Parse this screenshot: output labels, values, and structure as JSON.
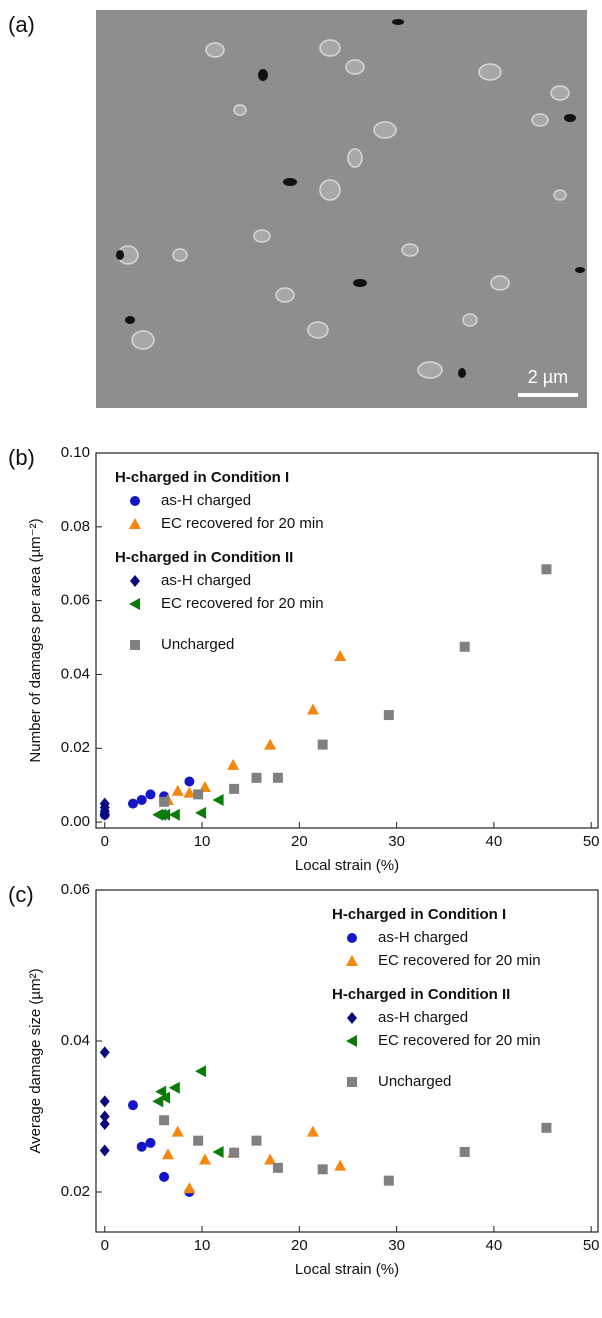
{
  "panel_a": {
    "label": "(a)",
    "scale_bar": "2 µm"
  },
  "chart_data": [
    {
      "type": "scatter",
      "label": "(b)",
      "x_label": "Local strain (%)",
      "y_label": "Number of damages per area (µm⁻²)",
      "xlim": [
        -0.9,
        50.7
      ],
      "ylim": [
        -0.0016,
        0.1
      ],
      "xticks": [
        0,
        10,
        20,
        30,
        40,
        50
      ],
      "yticks": [
        {
          "value": 0,
          "label": "0.00"
        },
        {
          "value": 0.02,
          "label": "0.02"
        },
        {
          "value": 0.04,
          "label": "0.04"
        },
        {
          "value": 0.06,
          "label": "0.06"
        },
        {
          "value": 0.08,
          "label": "0.08"
        },
        {
          "value": 0.1,
          "label": "0.10"
        }
      ],
      "legend": "upper left",
      "legend_headings": [
        "H-charged in Condition I",
        "H-charged in Condition II"
      ],
      "series": [
        {
          "name": "as-H charged",
          "color": "#1414c8",
          "marker": "circle",
          "x": [
            0,
            2.9,
            3.8,
            4.7,
            6.1,
            8.7
          ],
          "values": [
            0.002,
            0.005,
            0.006,
            0.0075,
            0.007,
            0.011
          ]
        },
        {
          "name": "EC recovered for 20 min",
          "color": "#f5870f",
          "marker": "triangle-up",
          "x": [
            6.5,
            7.5,
            8.7,
            10.3,
            13.2,
            17,
            21.4,
            24.2
          ],
          "values": [
            0.006,
            0.0085,
            0.008,
            0.0095,
            0.0155,
            0.021,
            0.0305,
            0.045
          ]
        },
        {
          "name": "as-H charged",
          "color": "#0a0a80",
          "marker": "diamond",
          "x": [
            0,
            0,
            0,
            0
          ],
          "values": [
            0.005,
            0.004,
            0.003,
            0.002
          ]
        },
        {
          "name": "EC recovered for 20 min",
          "color": "#0a7a0a",
          "marker": "triangle-left",
          "x": [
            5.5,
            5.8,
            6.2,
            7.2,
            9.9,
            11.7
          ],
          "values": [
            0.002,
            0.002,
            0.002,
            0.002,
            0.0025,
            0.006
          ]
        },
        {
          "name": "Uncharged",
          "color": "#808080",
          "marker": "square",
          "x": [
            6.1,
            9.6,
            13.3,
            15.6,
            17.8,
            22.4,
            29.2,
            37,
            45.4
          ],
          "values": [
            0.0055,
            0.0075,
            0.009,
            0.012,
            0.012,
            0.021,
            0.029,
            0.0475,
            0.0685
          ]
        }
      ]
    },
    {
      "type": "scatter",
      "label": "(c)",
      "x_label": "Local strain (%)",
      "y_label": "Average damage size (µm²)",
      "xlim": [
        -0.9,
        50.7
      ],
      "ylim": [
        0.0147,
        0.06
      ],
      "xticks": [
        0,
        10,
        20,
        30,
        40,
        50
      ],
      "yticks": [
        {
          "value": 0.02,
          "label": "0.02"
        },
        {
          "value": 0.04,
          "label": "0.04"
        },
        {
          "value": 0.06,
          "label": "0.06"
        }
      ],
      "legend": "upper right",
      "legend_headings": [
        "H-charged in Condition I",
        "H-charged in Condition II"
      ],
      "series": [
        {
          "name": "as-H charged",
          "color": "#1414c8",
          "marker": "circle",
          "x": [
            2.9,
            3.8,
            4.7,
            6.1,
            8.7
          ],
          "values": [
            0.0315,
            0.026,
            0.0265,
            0.022,
            0.02
          ]
        },
        {
          "name": "EC recovered for 20 min",
          "color": "#f5870f",
          "marker": "triangle-up",
          "x": [
            6.5,
            7.5,
            8.7,
            10.3,
            13.2,
            17,
            21.4,
            24.2
          ],
          "values": [
            0.025,
            0.028,
            0.0205,
            0.0243,
            0.0252,
            0.0243,
            0.028,
            0.0235
          ]
        },
        {
          "name": "as-H charged",
          "color": "#0a0a80",
          "marker": "diamond",
          "x": [
            0,
            0,
            0,
            0,
            0
          ],
          "values": [
            0.0385,
            0.032,
            0.03,
            0.029,
            0.0255
          ]
        },
        {
          "name": "EC recovered for 20 min",
          "color": "#0a7a0a",
          "marker": "triangle-left",
          "x": [
            5.5,
            5.8,
            6.2,
            7.2,
            9.9,
            11.7
          ],
          "values": [
            0.032,
            0.0333,
            0.0325,
            0.0338,
            0.036,
            0.0253
          ]
        },
        {
          "name": "Uncharged",
          "color": "#808080",
          "marker": "square",
          "x": [
            6.1,
            9.6,
            13.3,
            15.6,
            17.8,
            22.4,
            29.2,
            37,
            45.4
          ],
          "values": [
            0.0295,
            0.0268,
            0.0252,
            0.0268,
            0.0232,
            0.023,
            0.0215,
            0.0253,
            0.0285
          ]
        }
      ]
    }
  ]
}
